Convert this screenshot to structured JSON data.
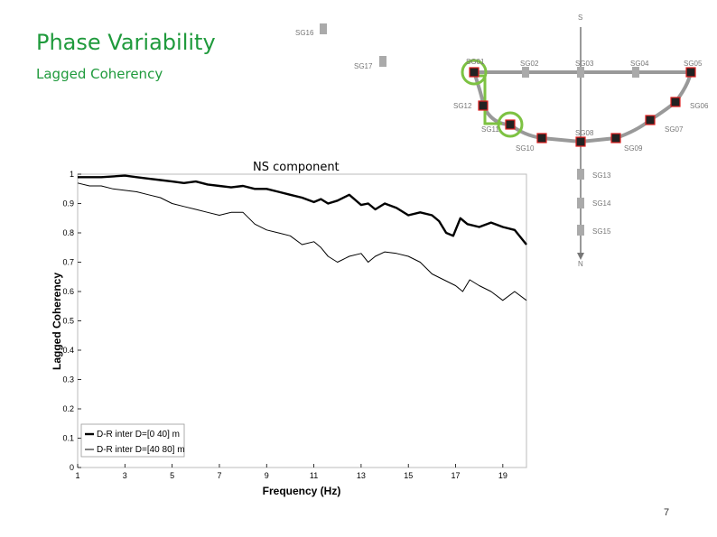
{
  "slide": {
    "title": "Phase Variability",
    "subtitle": "Lagged Coherency",
    "chart_label": "NS component",
    "page_number": "7"
  },
  "colors": {
    "title": "#1f9a3c",
    "highlight": "#7dc242",
    "array_line": "#999999",
    "station_fill": "#222222",
    "station_border": "#e02020",
    "station_gray": "#aaaaaa"
  },
  "array_map": {
    "south_label": "S",
    "north_label": "N",
    "stations": [
      {
        "id": "SG16",
        "label": "SG16",
        "style": "gray",
        "highlight": false
      },
      {
        "id": "SG17",
        "label": "SG17",
        "style": "gray",
        "highlight": false
      },
      {
        "id": "SG01",
        "label": "SG01",
        "style": "dark",
        "highlight": true
      },
      {
        "id": "SG02",
        "label": "SG02",
        "style": "gray",
        "highlight": false
      },
      {
        "id": "SG03",
        "label": "SG03",
        "style": "gray",
        "highlight": false
      },
      {
        "id": "SG04",
        "label": "SG04",
        "style": "gray",
        "highlight": false
      },
      {
        "id": "SG05",
        "label": "SG05",
        "style": "dark",
        "highlight": false
      },
      {
        "id": "SG12",
        "label": "SG12",
        "style": "dark",
        "highlight": false
      },
      {
        "id": "SG06",
        "label": "SG06",
        "style": "dark",
        "highlight": false
      },
      {
        "id": "SG11",
        "label": "SG11",
        "style": "dark",
        "highlight": true
      },
      {
        "id": "SG07",
        "label": "SG07",
        "style": "dark",
        "highlight": false
      },
      {
        "id": "SG08",
        "label": "SG08",
        "style": "dark",
        "highlight": false
      },
      {
        "id": "SG10",
        "label": "SG10",
        "style": "dark",
        "highlight": false
      },
      {
        "id": "SG09",
        "label": "SG09",
        "style": "dark",
        "highlight": false
      },
      {
        "id": "SG13",
        "label": "SG13",
        "style": "gray",
        "highlight": false
      },
      {
        "id": "SG14",
        "label": "SG14",
        "style": "gray",
        "highlight": false
      },
      {
        "id": "SG15",
        "label": "SG15",
        "style": "gray",
        "highlight": false
      }
    ]
  },
  "chart_data": {
    "type": "line",
    "title": "",
    "xlabel": "Frequency (Hz)",
    "ylabel": "Lagged Coherency",
    "xlim": [
      1,
      20
    ],
    "ylim": [
      0,
      1
    ],
    "x_ticks": [
      1,
      3,
      5,
      7,
      9,
      11,
      13,
      15,
      17,
      19
    ],
    "y_ticks": [
      0,
      0.1,
      0.2,
      0.3,
      0.4,
      0.5,
      0.6,
      0.7,
      0.8,
      0.9,
      1
    ],
    "y_tick_labels": [
      "0",
      "0.1",
      "0.2",
      "0.3",
      "0.4",
      "0.5",
      "0.6",
      "0.7",
      "0.8",
      "0.9",
      "1"
    ],
    "grid": false,
    "legend": "bottom-left",
    "series": [
      {
        "name": "D-R inter D=[0 40] m",
        "style": "thick",
        "x": [
          1.0,
          2.0,
          3.0,
          3.5,
          4.0,
          4.5,
          5.0,
          5.5,
          6.0,
          6.5,
          7.0,
          7.5,
          8.0,
          8.5,
          9.0,
          9.5,
          10.0,
          10.5,
          11.0,
          11.3,
          11.6,
          12.0,
          12.5,
          13.0,
          13.3,
          13.6,
          14.0,
          14.5,
          15.0,
          15.5,
          16.0,
          16.3,
          16.6,
          16.9,
          17.2,
          17.5,
          18.0,
          18.5,
          19.0,
          19.5,
          20.0
        ],
        "y": [
          0.99,
          0.99,
          0.995,
          0.99,
          0.985,
          0.98,
          0.975,
          0.97,
          0.975,
          0.965,
          0.96,
          0.955,
          0.96,
          0.95,
          0.95,
          0.94,
          0.93,
          0.92,
          0.905,
          0.915,
          0.9,
          0.91,
          0.93,
          0.895,
          0.9,
          0.88,
          0.9,
          0.885,
          0.86,
          0.87,
          0.86,
          0.84,
          0.8,
          0.79,
          0.85,
          0.83,
          0.82,
          0.835,
          0.82,
          0.81,
          0.76
        ]
      },
      {
        "name": "D-R inter D=[40 80] m",
        "style": "thin",
        "x": [
          1.0,
          1.5,
          2.0,
          2.5,
          3.0,
          3.5,
          4.0,
          4.5,
          5.0,
          5.5,
          6.0,
          6.5,
          7.0,
          7.5,
          8.0,
          8.5,
          9.0,
          9.5,
          10.0,
          10.5,
          11.0,
          11.3,
          11.6,
          12.0,
          12.5,
          13.0,
          13.3,
          13.6,
          14.0,
          14.5,
          15.0,
          15.5,
          16.0,
          16.5,
          17.0,
          17.3,
          17.6,
          18.0,
          18.5,
          19.0,
          19.5,
          20.0
        ],
        "y": [
          0.97,
          0.96,
          0.96,
          0.95,
          0.945,
          0.94,
          0.93,
          0.92,
          0.9,
          0.89,
          0.88,
          0.87,
          0.86,
          0.87,
          0.87,
          0.83,
          0.81,
          0.8,
          0.79,
          0.76,
          0.77,
          0.75,
          0.72,
          0.7,
          0.72,
          0.73,
          0.7,
          0.72,
          0.735,
          0.73,
          0.72,
          0.7,
          0.66,
          0.64,
          0.62,
          0.6,
          0.64,
          0.62,
          0.6,
          0.57,
          0.6,
          0.57
        ]
      }
    ]
  }
}
